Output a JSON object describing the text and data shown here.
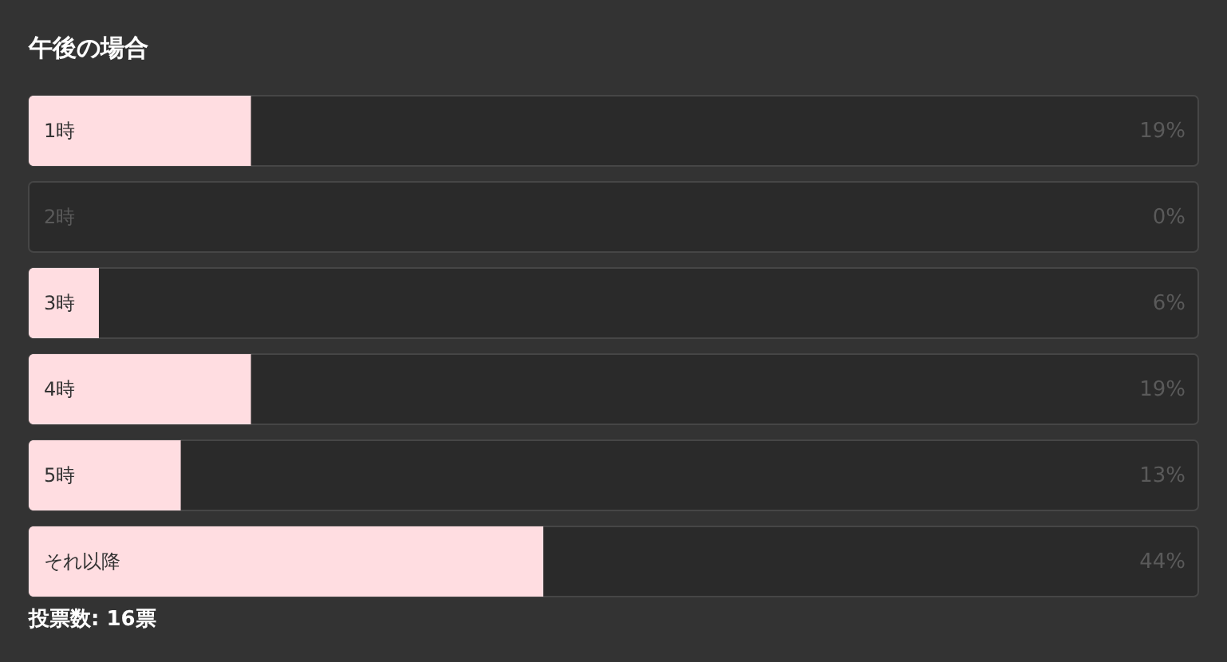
{
  "chart_data": {
    "type": "bar",
    "orientation": "horizontal",
    "title": "午後の場合",
    "categories": [
      "1時",
      "2時",
      "3時",
      "4時",
      "5時",
      "それ以降"
    ],
    "values": [
      19,
      0,
      6,
      19,
      13,
      44
    ],
    "color": "#ffdde1",
    "value_labels": [
      "19%",
      "0%",
      "6%",
      "19%",
      "13%",
      "44%"
    ],
    "xlim": [
      0,
      100
    ],
    "tick_labels": "y",
    "annotations": [
      "投票数: 16票"
    ]
  }
}
